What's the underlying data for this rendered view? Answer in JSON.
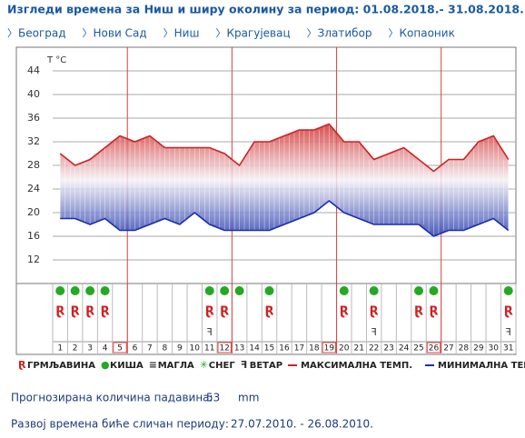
{
  "header": {
    "title": "Изгледи времена за Ниш и ширу околину за период: 01.08.2018.- 31.08.2018.",
    "links": [
      "Београд",
      "Нови Сад",
      "Ниш",
      "Крагујевац",
      "Златибор",
      "Копаоник"
    ]
  },
  "chart_data": {
    "type": "temperature-band",
    "y_label": "T °C",
    "categories": [
      "1",
      "2",
      "3",
      "4",
      "5",
      "6",
      "7",
      "8",
      "9",
      "10",
      "11",
      "12",
      "13",
      "14",
      "15",
      "16",
      "17",
      "18",
      "19",
      "20",
      "21",
      "22",
      "23",
      "24",
      "25",
      "26",
      "27",
      "28",
      "29",
      "30",
      "31"
    ],
    "highlight_days": [
      5,
      12,
      19,
      26
    ],
    "series": [
      {
        "name": "МАКСИМАЛНА ТЕМП.",
        "color": "#cc2222",
        "values": [
          30,
          28,
          29,
          31,
          33,
          32,
          33,
          31,
          31,
          31,
          31,
          30,
          28,
          32,
          32,
          33,
          34,
          34,
          35,
          32,
          32,
          29,
          30,
          31,
          29,
          27,
          29,
          29,
          32,
          33,
          29
        ]
      },
      {
        "name": "МИНИМАЛНА ТЕМП.",
        "color": "#1a2fa8",
        "values": [
          19,
          19,
          18,
          19,
          17,
          17,
          18,
          19,
          18,
          20,
          18,
          17,
          17,
          17,
          17,
          18,
          19,
          20,
          22,
          20,
          19,
          18,
          18,
          18,
          18,
          16,
          17,
          17,
          18,
          19,
          17
        ]
      }
    ],
    "ylim": [
      8,
      48
    ],
    "yticks": [
      12,
      16,
      20,
      24,
      28,
      32,
      36,
      40,
      44
    ],
    "rain_days": [
      1,
      2,
      3,
      4,
      11,
      12,
      13,
      15,
      20,
      22,
      25,
      26,
      31
    ],
    "thunder_days": [
      1,
      2,
      3,
      4,
      11,
      12,
      15,
      20,
      22,
      25,
      26,
      31
    ],
    "wind_days": [
      11,
      22,
      31
    ],
    "legend": [
      "ГРМЉАВИНА",
      "КИША",
      "МАГЛА",
      "СНЕГ",
      "ВЕТАР"
    ]
  },
  "footer": {
    "precip_label": "Прогнозирана количина падавина:",
    "precip_value": 53,
    "precip_unit": "mm",
    "similar_label": "Развој времена биће сличан периоду:",
    "similar_period": "27.07.2010. - 26.08.2010."
  }
}
